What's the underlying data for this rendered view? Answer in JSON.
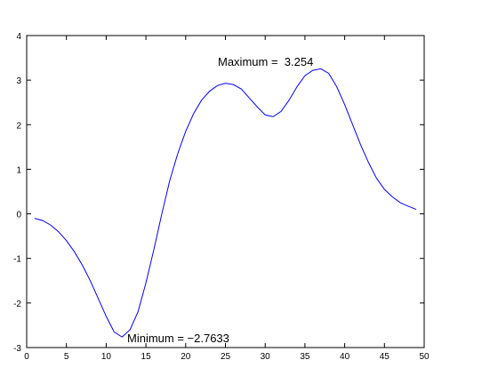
{
  "chart_data": {
    "type": "line",
    "x": [
      1,
      2,
      3,
      4,
      5,
      6,
      7,
      8,
      9,
      10,
      11,
      12,
      13,
      14,
      15,
      16,
      17,
      18,
      19,
      20,
      21,
      22,
      23,
      24,
      25,
      26,
      27,
      28,
      29,
      30,
      31,
      32,
      33,
      34,
      35,
      36,
      37,
      38,
      39,
      40,
      41,
      42,
      43,
      44,
      45,
      46,
      47,
      48,
      49
    ],
    "values": [
      -0.1,
      -0.15,
      -0.25,
      -0.4,
      -0.6,
      -0.85,
      -1.15,
      -1.5,
      -1.9,
      -2.3,
      -2.65,
      -2.7633,
      -2.6,
      -2.2,
      -1.55,
      -0.8,
      0.0,
      0.75,
      1.35,
      1.85,
      2.25,
      2.55,
      2.75,
      2.88,
      2.93,
      2.9,
      2.8,
      2.6,
      2.4,
      2.22,
      2.18,
      2.3,
      2.55,
      2.85,
      3.1,
      3.22,
      3.254,
      3.15,
      2.85,
      2.45,
      2.0,
      1.55,
      1.15,
      0.8,
      0.55,
      0.38,
      0.25,
      0.17,
      0.1
    ],
    "color": "#0000ff",
    "xlim": [
      0,
      50
    ],
    "xticks": [
      0,
      5,
      10,
      15,
      20,
      25,
      30,
      35,
      40,
      45,
      50
    ],
    "ylim": [
      -3,
      4
    ],
    "yticks": [
      -3,
      -2,
      -1,
      0,
      1,
      2,
      3,
      4
    ],
    "annotations": [
      "Maximum =  3.254",
      "Minimum = −2.7633"
    ]
  }
}
